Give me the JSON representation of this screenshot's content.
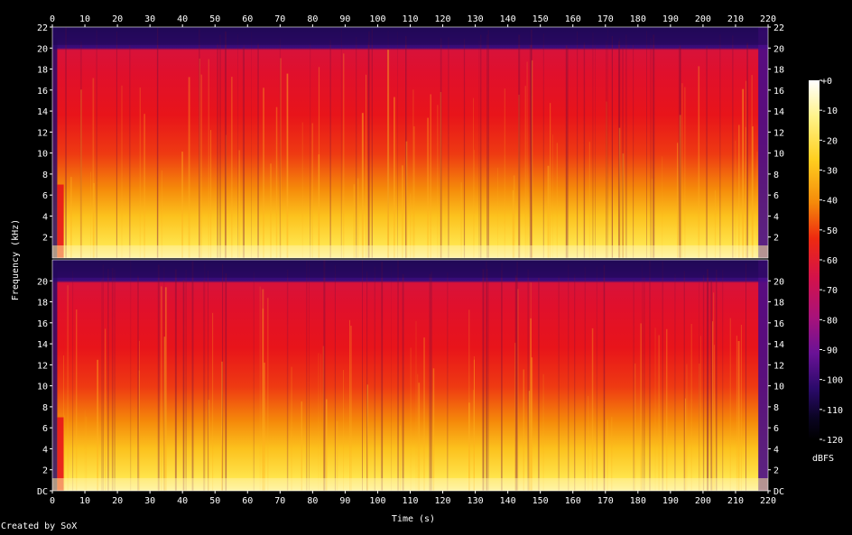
{
  "chart_data": {
    "type": "heatmap",
    "title": "",
    "xlabel": "Time (s)",
    "ylabel": "Frequency (kHz)",
    "xlim": [
      0,
      220
    ],
    "ylim_khz": [
      0,
      22
    ],
    "x_ticks": [
      0,
      10,
      20,
      30,
      40,
      50,
      60,
      70,
      80,
      90,
      100,
      110,
      120,
      130,
      140,
      150,
      160,
      170,
      180,
      190,
      200,
      210,
      220
    ],
    "y_ticks": [
      2,
      4,
      6,
      8,
      10,
      12,
      14,
      16,
      18,
      20,
      22
    ],
    "y_ticks_bottom_channel": [
      "DC",
      "2",
      "4",
      "6",
      "8",
      "10",
      "12",
      "14",
      "16",
      "18",
      "20"
    ],
    "channels": 2,
    "colorbar": {
      "label": "dBFS",
      "range": [
        -120,
        0
      ],
      "ticks": [
        "+0",
        "-10",
        "-20",
        "-30",
        "-40",
        "-50",
        "-60",
        "-70",
        "-80",
        "-90",
        "-100",
        "-110",
        "-120"
      ]
    },
    "grid": false,
    "legend": "right",
    "colors": {
      "background": "#000000",
      "level_0": "#ffffff",
      "level_-20": "#ffe34a",
      "level_-40": "#f58a0a",
      "level_-50": "#e8141a",
      "level_-65": "#c8135a",
      "level_-85": "#6a1296",
      "level_-105": "#2a0a6a",
      "level_-120": "#000000"
    }
  },
  "footer": {
    "credit": "Created by SoX"
  }
}
